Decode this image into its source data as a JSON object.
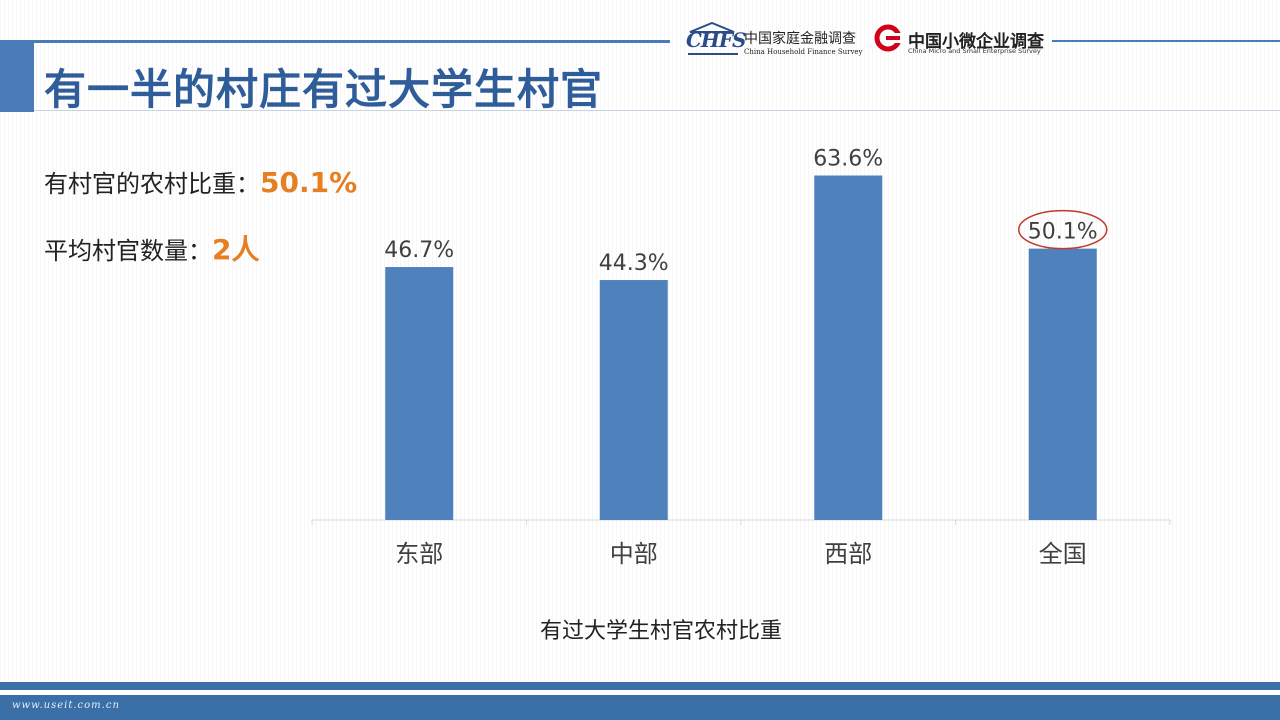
{
  "slide": {
    "title": "有一半的村庄有过大学生村官"
  },
  "logos": {
    "chfs_mark": "CHFS",
    "chfs_cn": "中国家庭金融调查",
    "chfs_en": "China Household Finance Survey",
    "sme_cn": "中国小微企业调查",
    "sme_en": "China Micro and Small Enterprise Survey"
  },
  "stats": [
    {
      "label": "有村官的农村比重：",
      "value": "50.1%"
    },
    {
      "label": "平均村官数量：",
      "value": "2人"
    }
  ],
  "footer": {
    "url": "www.useit.com.cn"
  },
  "colors": {
    "bar": "#4f81bd",
    "accent": "#e67e22",
    "title": "#2f5d9a",
    "highlight_circle": "#c0392b"
  },
  "chart_data": {
    "type": "bar",
    "title": "",
    "xlabel": "有过大学生村官农村比重",
    "ylabel": "",
    "categories": [
      "东部",
      "中部",
      "西部",
      "全国"
    ],
    "values": [
      46.7,
      44.3,
      63.6,
      50.1
    ],
    "data_labels": [
      "46.7%",
      "44.3%",
      "63.6%",
      "50.1%"
    ],
    "ylim": [
      0,
      72
    ],
    "grid": false,
    "legend": "none",
    "highlighted_category": "全国"
  }
}
